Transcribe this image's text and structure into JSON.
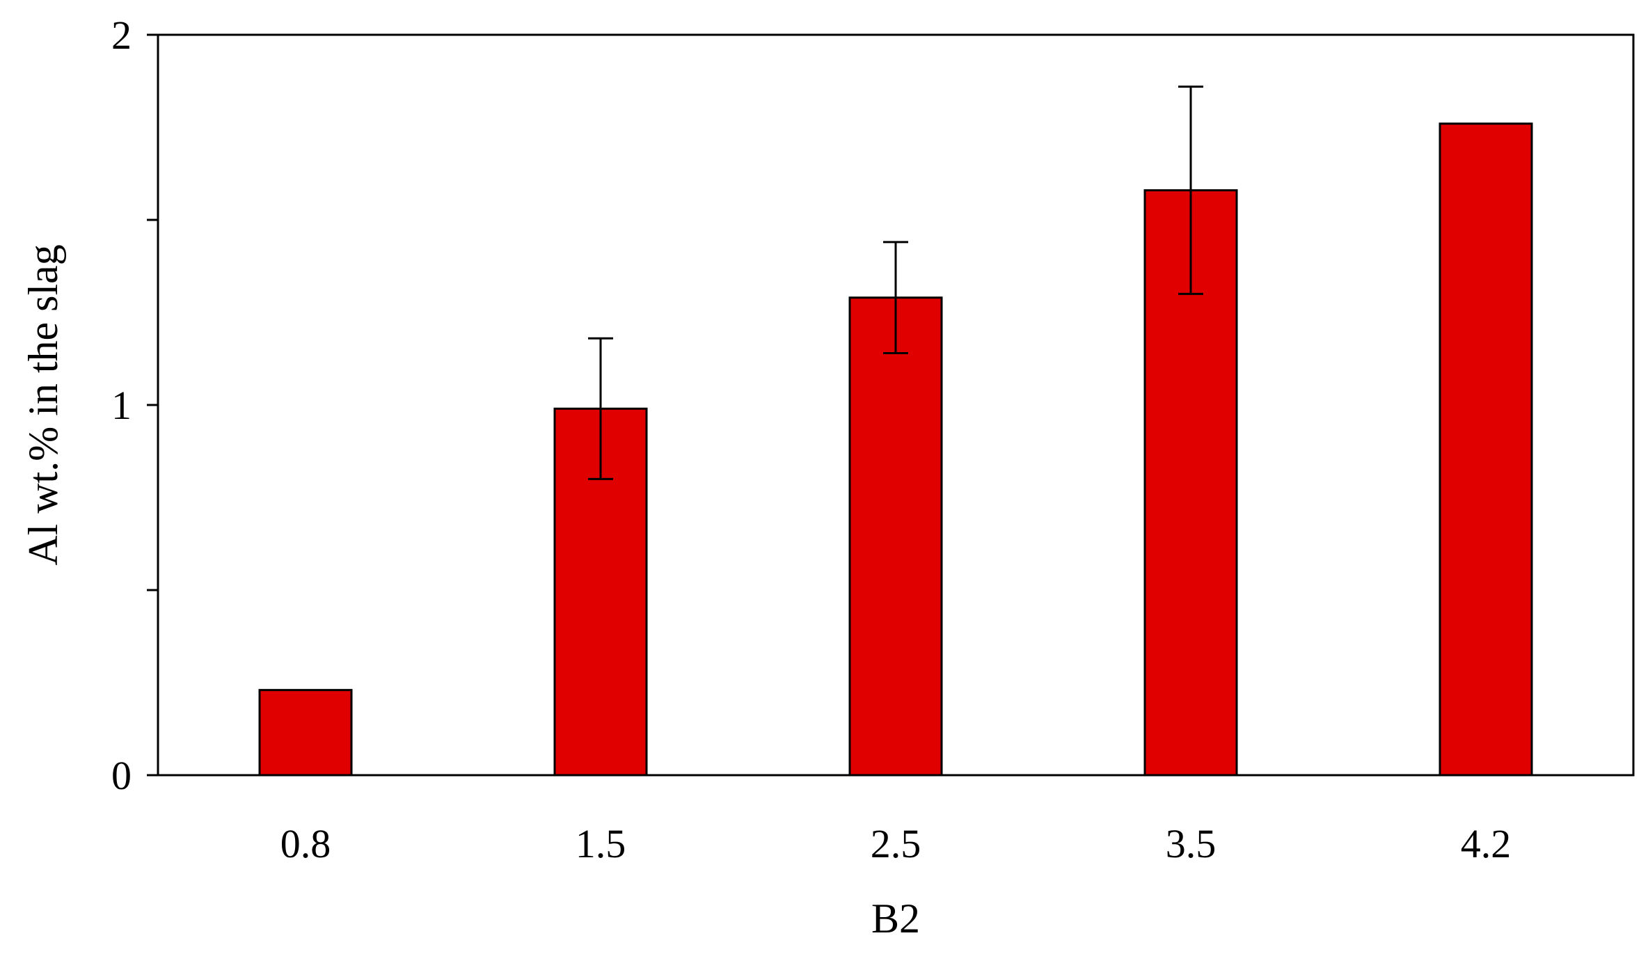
{
  "chart_data": {
    "type": "bar",
    "categories": [
      "0.8",
      "1.5",
      "2.5",
      "3.5",
      "4.2"
    ],
    "values": [
      0.23,
      0.99,
      1.29,
      1.58,
      1.76
    ],
    "error_bars": [
      null,
      0.19,
      0.15,
      0.28,
      null
    ],
    "xlabel": "B2",
    "ylabel": "Al wt.% in the slag",
    "ylim": [
      0,
      2
    ],
    "y_major_ticks": [
      0,
      0.5,
      1,
      1.5,
      2
    ],
    "y_tick_labels": [
      "0",
      "",
      "1",
      "",
      "2"
    ],
    "grid": false,
    "bar_color": "#e00000",
    "edge_color": "#000000"
  }
}
